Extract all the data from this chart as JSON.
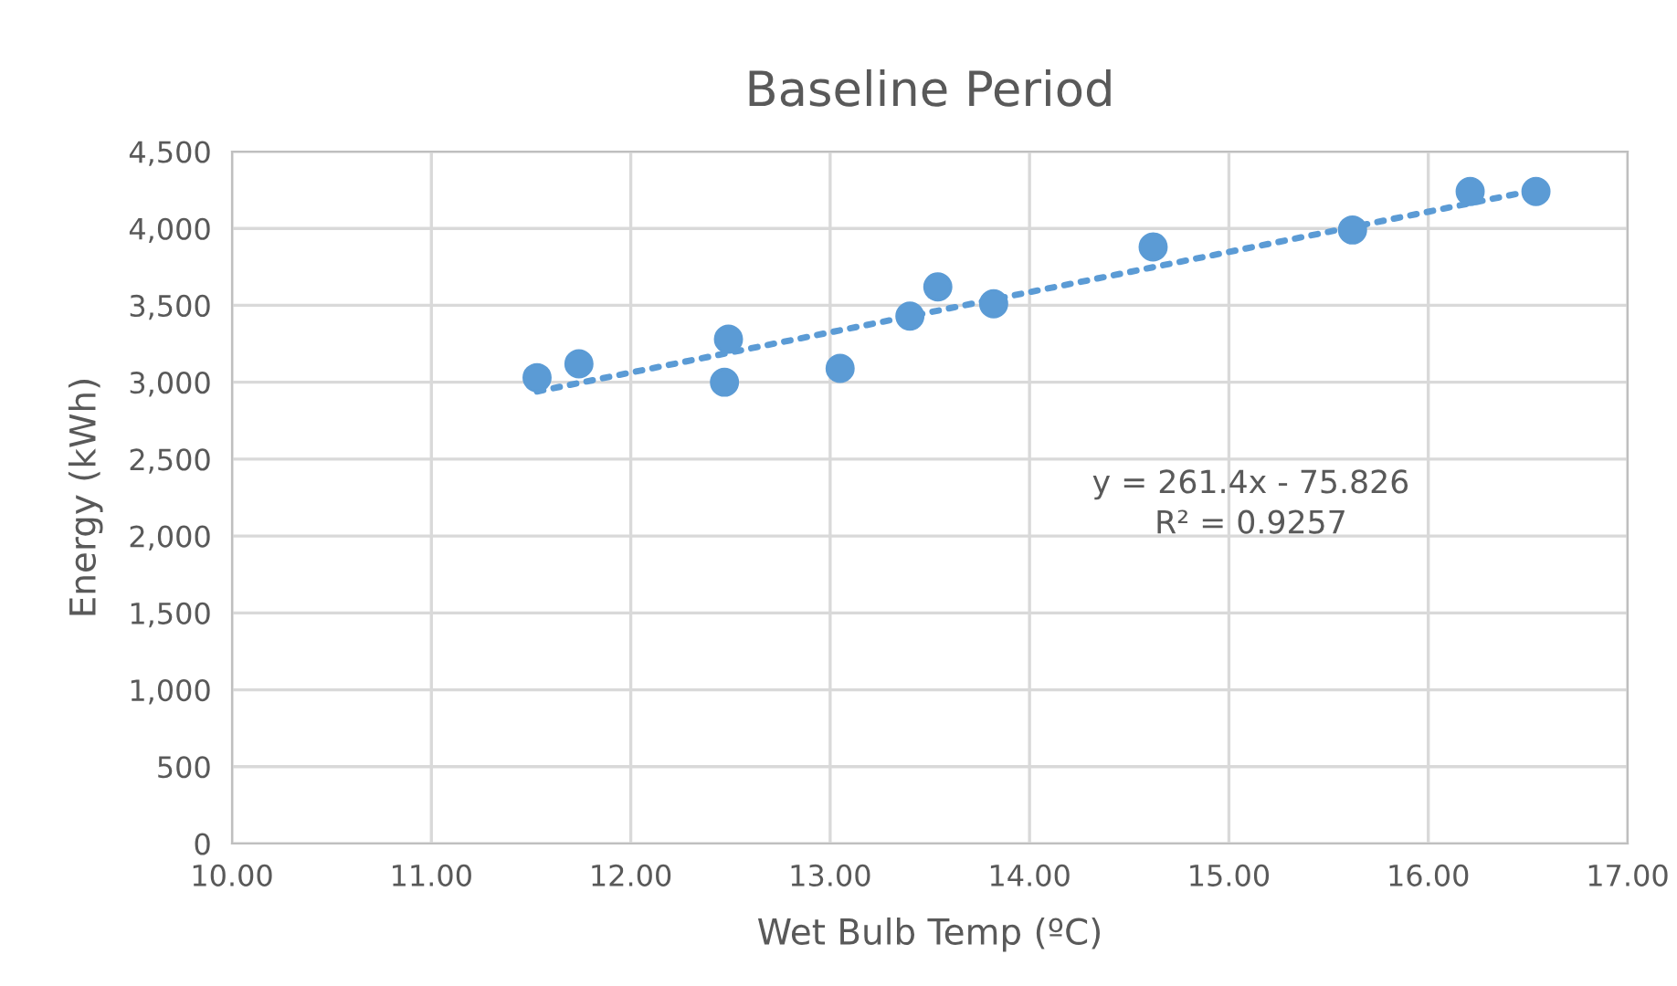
{
  "chart_data": {
    "type": "scatter",
    "title": "Baseline Period",
    "xlabel": "Wet Bulb Temp (ºC)",
    "ylabel": "Energy (kWh)",
    "x": [
      11.53,
      11.74,
      12.49,
      12.47,
      13.05,
      13.4,
      13.54,
      13.82,
      14.62,
      15.62,
      16.21,
      16.54
    ],
    "series": [
      {
        "color": "#5b9bd5",
        "values": [
          3030,
          3120,
          3280,
          3000,
          3090,
          3430,
          3620,
          3510,
          3880,
          3990,
          4240,
          4240
        ]
      },
      {
        "type": "line",
        "color": "#5b9bd5",
        "line_style": "dotted",
        "x": [
          11.53,
          16.54
        ],
        "values": [
          2940,
          4250
        ]
      }
    ],
    "annotations": [
      "y = 261.4x - 75.826\nR² = 0.9257"
    ],
    "xlim": [
      10,
      17
    ],
    "xticks": [
      {
        "value": 10,
        "label": "10.00"
      },
      {
        "value": 11,
        "label": "11.00"
      },
      {
        "value": 12,
        "label": "12.00"
      },
      {
        "value": 13,
        "label": "13.00"
      },
      {
        "value": 14,
        "label": "14.00"
      },
      {
        "value": 15,
        "label": "15.00"
      },
      {
        "value": 16,
        "label": "16.00"
      },
      {
        "value": 17,
        "label": "17.00"
      }
    ],
    "ylim": [
      0,
      4500
    ],
    "yticks": [
      0,
      {
        "value": 500,
        "label": "500"
      },
      {
        "value": 1000,
        "label": "1,000"
      },
      {
        "value": 1500,
        "label": "1,500"
      },
      {
        "value": 2000,
        "label": "2,000"
      },
      {
        "value": 2500,
        "label": "2,500"
      },
      {
        "value": 3000,
        "label": "3,000"
      },
      {
        "value": 3500,
        "label": "3,500"
      },
      {
        "value": 4000,
        "label": "4,000"
      },
      {
        "value": 4500,
        "label": "4,500"
      }
    ],
    "grid": true,
    "legend": false
  }
}
